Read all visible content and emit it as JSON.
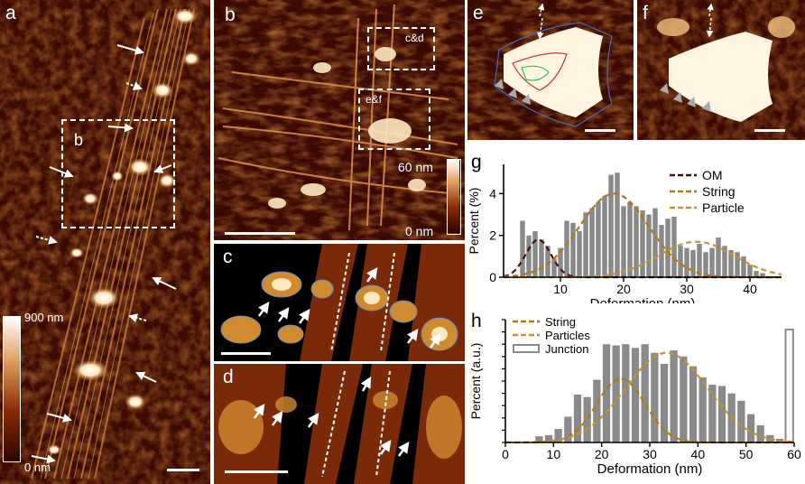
{
  "panels": {
    "a": {
      "label": "a",
      "box_label": "b",
      "colorbar_max": "900 nm",
      "colorbar_min": "0 nm"
    },
    "b": {
      "label": "b",
      "box1_label": "c&d",
      "box2_label": "e&f",
      "colorbar_max": "60 nm",
      "colorbar_min": "0 nm"
    },
    "c": {
      "label": "c"
    },
    "d": {
      "label": "d"
    },
    "e": {
      "label": "e"
    },
    "f": {
      "label": "f"
    }
  },
  "chart_data": [
    {
      "panel": "g",
      "type": "bar",
      "xlabel": "Deformation (nm)",
      "ylabel": "Percent (%)",
      "xlim": [
        1,
        45
      ],
      "ylim": [
        0,
        5.4
      ],
      "xticks": [
        10,
        20,
        30,
        40
      ],
      "yticks": [
        0,
        2,
        4
      ],
      "bars": {
        "x": [
          4,
          5,
          6,
          7,
          8,
          9,
          10,
          11,
          12,
          13,
          14,
          15,
          16,
          17,
          18,
          19,
          20,
          21,
          22,
          23,
          24,
          25,
          26,
          27,
          28,
          29,
          30,
          31,
          32,
          33,
          34,
          35,
          36,
          37,
          38,
          39,
          40,
          41,
          42
        ],
        "values": [
          2.7,
          2.0,
          2.2,
          1.8,
          1.5,
          0.9,
          1.4,
          2.7,
          2.6,
          2.2,
          3.1,
          3.3,
          3.6,
          3.9,
          4.9,
          5.0,
          3.4,
          3.6,
          3.4,
          3.2,
          3.0,
          3.3,
          2.5,
          2.8,
          2.9,
          1.5,
          1.4,
          1.3,
          1.6,
          1.2,
          1.4,
          1.9,
          1.5,
          1.3,
          1.2,
          1.0,
          0.6,
          0.3,
          0.2
        ]
      },
      "fits": [
        {
          "name": "OM",
          "color": "#4a1008",
          "mean": 6.5,
          "sd": 2.0,
          "peak": 1.8
        },
        {
          "name": "String",
          "color": "#b8760a",
          "mean": 18.5,
          "sd": 5.5,
          "peak": 4.0
        },
        {
          "name": "Particle",
          "color": "#c8922a",
          "mean": 31.5,
          "sd": 6.0,
          "peak": 1.7
        }
      ],
      "legend": [
        "OM",
        "String",
        "Particle"
      ]
    },
    {
      "panel": "h",
      "type": "bar",
      "xlabel": "Deformation (nm)",
      "ylabel": "Percent (a.u.)",
      "xlim": [
        0,
        60
      ],
      "ylim": [
        0,
        10
      ],
      "xticks": [
        0,
        10,
        20,
        30,
        40,
        50,
        60
      ],
      "bars": {
        "x": [
          7,
          9,
          11,
          13,
          15,
          17,
          19,
          21,
          23,
          25,
          27,
          29,
          31,
          33,
          35,
          37,
          39,
          41,
          43,
          45,
          47,
          49,
          51,
          53,
          55,
          57
        ],
        "values": [
          0.5,
          0.6,
          1.1,
          2.1,
          3.9,
          3.7,
          5.1,
          8.0,
          7.9,
          8.0,
          7.7,
          8.0,
          7.3,
          6.4,
          7.5,
          7.0,
          6.2,
          5.3,
          4.7,
          4.6,
          4.0,
          3.4,
          2.3,
          1.4,
          0.6,
          0.3
        ]
      },
      "junction": {
        "x": 59,
        "value": 9.2
      },
      "fits": [
        {
          "name": "String",
          "color": "#b8760a",
          "mean": 24.0,
          "sd": 5.0,
          "peak": 5.2
        },
        {
          "name": "Particles",
          "color": "#c8922a",
          "mean": 33.5,
          "sd": 8.5,
          "peak": 7.3
        }
      ],
      "legend": [
        "String",
        "Particles",
        "Junction"
      ]
    }
  ]
}
